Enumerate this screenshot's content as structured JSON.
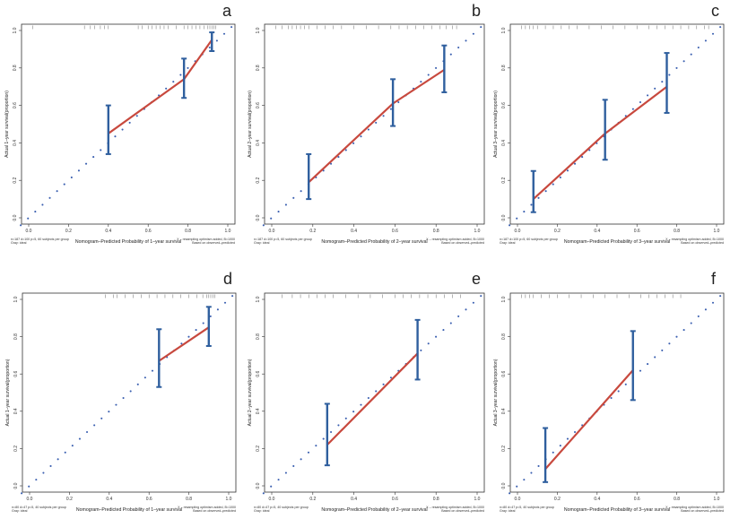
{
  "figure": {
    "colors": {
      "ideal": "#3a5fb0",
      "calibration": "#c8493e",
      "errorbar": "#2f5f9e",
      "frame": "#333333"
    }
  },
  "chart_data": [
    {
      "letter": "a",
      "type": "line",
      "title": "",
      "xlabel": "Nomogram–Predicted Probability of 1–year survival",
      "ylabel": "Actual 1–year survival(proportion)",
      "xlim": [
        0,
        1
      ],
      "ylim": [
        0,
        1
      ],
      "ticks": [
        "0.0",
        "0.2",
        "0.4",
        "0.6",
        "0.8",
        "1.0"
      ],
      "note_left": "n=187 d=100 p=5, 60 subjects per group",
      "note_left2": "Gray: ideal",
      "note_right": "X – resampling optimism added, B=1000",
      "note_right2": "Based on observed–predicted",
      "points": [
        {
          "x": 0.4,
          "y": 0.45,
          "lo": 0.34,
          "hi": 0.6
        },
        {
          "x": 0.78,
          "y": 0.74,
          "lo": 0.64,
          "hi": 0.85
        },
        {
          "x": 0.92,
          "y": 0.95,
          "lo": 0.89,
          "hi": 0.99
        }
      ],
      "rug": [
        0.02,
        0.28,
        0.31,
        0.33,
        0.36,
        0.38,
        0.4,
        0.55,
        0.57,
        0.6,
        0.62,
        0.64,
        0.66,
        0.68,
        0.7,
        0.74,
        0.78,
        0.8,
        0.82,
        0.84,
        0.86,
        0.88,
        0.9,
        0.91,
        0.92,
        0.93,
        0.94
      ]
    },
    {
      "letter": "b",
      "type": "line",
      "title": "",
      "xlabel": "Nomogram–Predicted Probability of 2–year survival",
      "ylabel": "Actual 2–year survival(proportion)",
      "xlim": [
        0,
        1
      ],
      "ylim": [
        0,
        1
      ],
      "ticks": [
        "0.0",
        "0.2",
        "0.4",
        "0.6",
        "0.8",
        "1.0"
      ],
      "note_left": "n=187 d=100 p=5, 60 subjects per group",
      "note_left2": "Gray: ideal",
      "note_right": "X – resampling optimism added, B=1000",
      "note_right2": "Based on observed–predicted",
      "points": [
        {
          "x": 0.18,
          "y": 0.19,
          "lo": 0.1,
          "hi": 0.34
        },
        {
          "x": 0.59,
          "y": 0.61,
          "lo": 0.49,
          "hi": 0.74
        },
        {
          "x": 0.84,
          "y": 0.79,
          "lo": 0.67,
          "hi": 0.92
        }
      ],
      "rug": [
        0.02,
        0.05,
        0.08,
        0.1,
        0.12,
        0.14,
        0.16,
        0.18,
        0.22,
        0.26,
        0.3,
        0.34,
        0.4,
        0.46,
        0.52,
        0.58,
        0.62,
        0.66,
        0.7,
        0.74,
        0.78,
        0.82,
        0.85,
        0.88,
        0.9
      ]
    },
    {
      "letter": "c",
      "type": "line",
      "title": "",
      "xlabel": "Nomogram–Predicted Probability of 3–year survival",
      "ylabel": "Actual 3–year survival(proportion)",
      "xlim": [
        0,
        1
      ],
      "ylim": [
        0,
        1
      ],
      "ticks": [
        "0.0",
        "0.2",
        "0.4",
        "0.6",
        "0.8",
        "1.0"
      ],
      "note_left": "n=187 d=100 p=5, 60 subjects per group",
      "note_left2": "Gray: ideal",
      "note_right": "X – resampling optimism added, B=1000",
      "note_right2": "Based on observed–predicted",
      "points": [
        {
          "x": 0.08,
          "y": 0.1,
          "lo": 0.03,
          "hi": 0.25
        },
        {
          "x": 0.44,
          "y": 0.45,
          "lo": 0.31,
          "hi": 0.63
        },
        {
          "x": 0.75,
          "y": 0.7,
          "lo": 0.56,
          "hi": 0.88
        }
      ],
      "rug": [
        0.02,
        0.04,
        0.06,
        0.08,
        0.1,
        0.14,
        0.18,
        0.22,
        0.26,
        0.3,
        0.36,
        0.42,
        0.48,
        0.54,
        0.6,
        0.66,
        0.7,
        0.74,
        0.78,
        0.82,
        0.86,
        0.9,
        0.94,
        0.96
      ]
    },
    {
      "letter": "d",
      "type": "line",
      "title": "",
      "xlabel": "Nomogram–Predicted Probability of 1–year survival",
      "ylabel": "Actual 1–year survival(proportion)",
      "xlim": [
        0,
        1
      ],
      "ylim": [
        0,
        1
      ],
      "ticks": [
        "0.0",
        "0.2",
        "0.4",
        "0.6",
        "0.8",
        "1.0"
      ],
      "note_left": "n=80 d=47 p=5, 40 subjects per group",
      "note_left2": "Gray: ideal",
      "note_right": "X – resampling optimism added, B=1000",
      "note_right2": "Based on observed–predicted",
      "points": [
        {
          "x": 0.65,
          "y": 0.67,
          "lo": 0.53,
          "hi": 0.84
        },
        {
          "x": 0.9,
          "y": 0.85,
          "lo": 0.75,
          "hi": 0.96
        }
      ],
      "rug": [
        0.38,
        0.42,
        0.44,
        0.48,
        0.52,
        0.56,
        0.6,
        0.64,
        0.68,
        0.72,
        0.76,
        0.8,
        0.84,
        0.87,
        0.89,
        0.9,
        0.91,
        0.92,
        0.93
      ]
    },
    {
      "letter": "e",
      "type": "line",
      "title": "",
      "xlabel": "Nomogram–Predicted Probability of 2–year survival",
      "ylabel": "Actual 2–year survival(proportion)",
      "xlim": [
        0,
        1
      ],
      "ylim": [
        0,
        1
      ],
      "ticks": [
        "0.0",
        "0.2",
        "0.4",
        "0.6",
        "0.8",
        "1.0"
      ],
      "note_left": "n=80 d=47 p=5, 40 subjects per group",
      "note_left2": "Gray: ideal",
      "note_right": "X – resampling optimism added, B=1000",
      "note_right2": "Based on observed–predicted",
      "points": [
        {
          "x": 0.27,
          "y": 0.22,
          "lo": 0.11,
          "hi": 0.44
        },
        {
          "x": 0.71,
          "y": 0.71,
          "lo": 0.57,
          "hi": 0.89
        }
      ],
      "rug": [
        0.05,
        0.1,
        0.14,
        0.18,
        0.22,
        0.26,
        0.3,
        0.36,
        0.42,
        0.48,
        0.54,
        0.6,
        0.64,
        0.68,
        0.72,
        0.76,
        0.8,
        0.84,
        0.88,
        0.92
      ]
    },
    {
      "letter": "f",
      "type": "line",
      "title": "",
      "xlabel": "Nomogram–Predicted Probability of 3–year survival",
      "ylabel": "Actual 3–year survival(proportion)",
      "xlim": [
        0,
        1
      ],
      "ylim": [
        0,
        1
      ],
      "ticks": [
        "0.0",
        "0.2",
        "0.4",
        "0.6",
        "0.8",
        "1.0"
      ],
      "note_left": "n=80 d=47 p=5, 40 subjects per group",
      "note_left2": "Gray: ideal",
      "note_right": "X – resampling optimism added, B=1000",
      "note_right2": "Based on observed–predicted",
      "points": [
        {
          "x": 0.14,
          "y": 0.09,
          "lo": 0.02,
          "hi": 0.31
        },
        {
          "x": 0.58,
          "y": 0.62,
          "lo": 0.46,
          "hi": 0.83
        }
      ],
      "rug": [
        0.02,
        0.04,
        0.06,
        0.08,
        0.12,
        0.16,
        0.2,
        0.26,
        0.32,
        0.38,
        0.44,
        0.5,
        0.56,
        0.62,
        0.66,
        0.7,
        0.74,
        0.78,
        0.82
      ]
    }
  ]
}
